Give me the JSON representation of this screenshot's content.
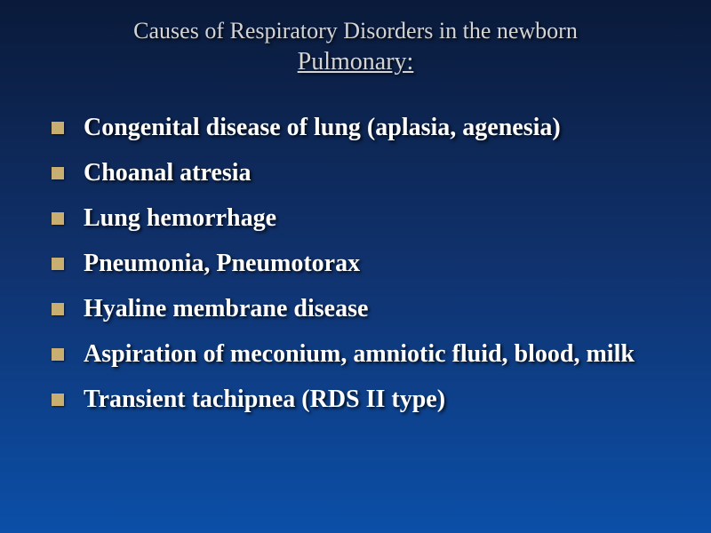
{
  "slide": {
    "title": "Causes of Respiratory Disorders in the newborn",
    "subtitle": "Pulmonary:",
    "bullets": [
      "Congenital disease of lung (aplasia, agenesia)",
      "Choanal atresia",
      "Lung hemorrhage",
      "Pneumonia, Pneumotorax",
      "Hyaline membrane disease",
      "Aspiration of meconium, amniotic fluid, blood, milk",
      "Transient tachipnea (RDS II type)"
    ]
  },
  "style": {
    "background_gradient": [
      "#0a1a3a",
      "#10326e",
      "#0b4fa8"
    ],
    "title_color": "#d4d4d4",
    "text_color": "#ffffff",
    "bullet_marker_color": "#c9ae72",
    "title_fontsize": 26,
    "subtitle_fontsize": 28,
    "bullet_fontsize": 28,
    "font_family": "Garamond"
  }
}
